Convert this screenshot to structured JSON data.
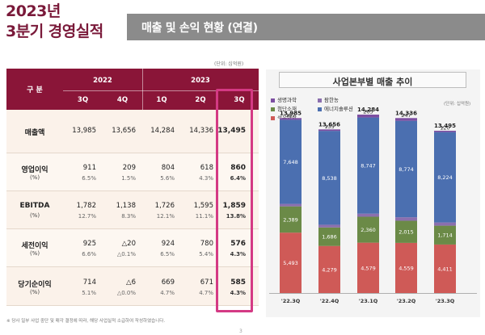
{
  "header": {
    "title_line1": "2023년",
    "title_line2": "3분기 경영실적",
    "banner": "매출 및 손익 현황 (연결)"
  },
  "table": {
    "unit": "(단위: 십억원)",
    "corner_label": "구 분",
    "years": [
      "2022",
      "2023"
    ],
    "quarters": [
      "3Q",
      "4Q",
      "1Q",
      "2Q",
      "3Q"
    ],
    "rows": [
      {
        "label": "매출액",
        "sub": "",
        "values": [
          "13,985",
          "13,656",
          "14,284",
          "14,336",
          "13,495"
        ],
        "pcts": []
      },
      {
        "label": "영업이익",
        "sub": "(%)",
        "values": [
          "911",
          "209",
          "804",
          "618",
          "860"
        ],
        "pcts": [
          "6.5%",
          "1.5%",
          "5.6%",
          "4.3%",
          "6.4%"
        ]
      },
      {
        "label": "EBITDA",
        "sub": "(%)",
        "values": [
          "1,782",
          "1,138",
          "1,726",
          "1,595",
          "1,859"
        ],
        "pcts": [
          "12.7%",
          "8.3%",
          "12.1%",
          "11.1%",
          "13.8%"
        ]
      },
      {
        "label": "세전이익",
        "sub": "(%)",
        "values": [
          "925",
          "△20",
          "924",
          "780",
          "576"
        ],
        "pcts": [
          "6.6%",
          "△0.1%",
          "6.5%",
          "5.4%",
          "4.3%"
        ]
      },
      {
        "label": "당기순이익",
        "sub": "(%)",
        "values": [
          "714",
          "△6",
          "669",
          "671",
          "585"
        ],
        "pcts": [
          "5.1%",
          "△0.0%",
          "4.7%",
          "4.7%",
          "4.3%"
        ]
      }
    ],
    "footnote": "※ 당사 일부 사업 중단 및 매각 결정에 따라, 해당 사업실적 소급하여 작성하였습니다.",
    "page_number": "3"
  },
  "colors": {
    "header_bg": "#8a1538",
    "highlight": "#d43a84",
    "petrochem": "#cf5a57",
    "chem_materials": "#6b8a47",
    "energy": "#4b6fb0",
    "advanced": "#8b6fae",
    "life": "#7d4fa2"
  },
  "chart_data": {
    "type": "bar",
    "title": "사업본부별 매출 추이",
    "unit": "(단위: 십억원)",
    "categories": [
      "'22.3Q",
      "'22.4Q",
      "'23.1Q",
      "'23.2Q",
      "'23.3Q"
    ],
    "totals": [
      "13,985",
      "13,656",
      "14,284",
      "14,336",
      "13,495"
    ],
    "series": [
      {
        "name": "석유화학",
        "values": [
          5493,
          4279,
          4579,
          4559,
          4411
        ],
        "labels": [
          "5,493",
          "4,279",
          "4,579",
          "4,559",
          "4,411"
        ],
        "color": "#cf5a57"
      },
      {
        "name": "첨단소재",
        "values": [
          2389,
          1686,
          2360,
          2015,
          1714
        ],
        "labels": [
          "2,389",
          "1,686",
          "2,360",
          "2,015",
          "1,714"
        ],
        "color": "#6b8a47"
      },
      {
        "name": "팜한농",
        "values": [
          225,
          245,
          278,
          317,
          291
        ],
        "labels": [
          "225",
          "245",
          "278",
          "317",
          "291"
        ],
        "color": "#8b6fae"
      },
      {
        "name": "에너지솔루션",
        "values": [
          7648,
          8538,
          8747,
          8774,
          8224
        ],
        "labels": [
          "7,648",
          "8,538",
          "8,747",
          "8,774",
          "8,224"
        ],
        "color": "#4b6fb0"
      },
      {
        "name": "생명과학",
        "values": [
          157,
          135,
          265,
          247,
          120
        ],
        "labels": [
          "157",
          "135",
          "265",
          "247",
          "120"
        ],
        "color": "#7d4fa2"
      }
    ],
    "legend": [
      "생명과학",
      "팜한농",
      "첨단소재",
      "에너지솔루션",
      "석유화학"
    ]
  }
}
